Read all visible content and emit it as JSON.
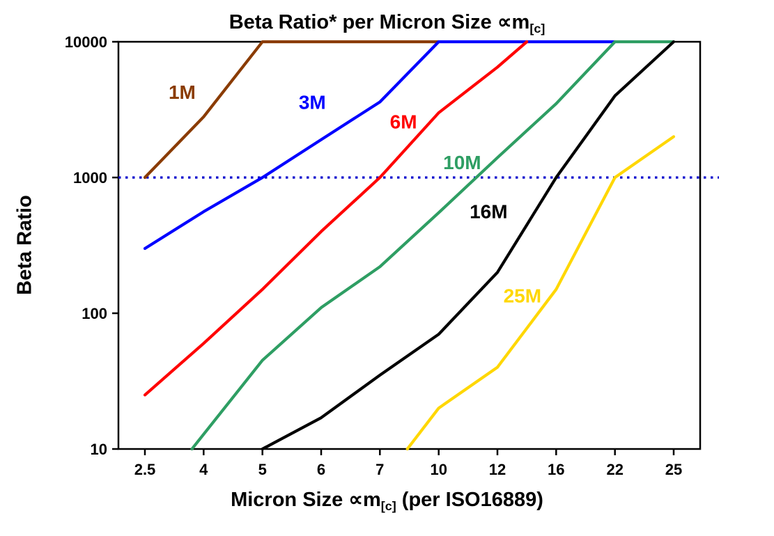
{
  "chart_title": {
    "main": "Beta Ratio* per Micron Size ∝m",
    "sub": "[c]"
  },
  "axes": {
    "y_label": "Beta Ratio",
    "x_label_pre": "Micron Size ∝m",
    "x_label_sub": "[c]",
    "x_label_post": " (per ISO16889)"
  },
  "chart_data": {
    "type": "line",
    "title": "Beta Ratio* per Micron Size ∝m[c]",
    "xlabel": "Micron Size ∝m[c] (per ISO16889)",
    "ylabel": "Beta Ratio",
    "x_scale": "categorical-spaced",
    "x_ticks": [
      2.5,
      4,
      5,
      6,
      7,
      10,
      12,
      16,
      22,
      25
    ],
    "y_scale": "log",
    "y_ticks": [
      10,
      100,
      1000,
      10000
    ],
    "ylim": [
      10,
      10000
    ],
    "grid": "off",
    "legend": "inline-labels",
    "reference_line": {
      "y": 1000,
      "color": "#0000CC",
      "style": "dotted"
    },
    "series": [
      {
        "name": "1M",
        "color": "#8A3B00",
        "label_pos": [
          3.45,
          3800
        ],
        "points": [
          [
            2.5,
            1000
          ],
          [
            4,
            2800
          ],
          [
            5,
            10000
          ],
          [
            10,
            10000
          ]
        ]
      },
      {
        "name": "3M",
        "color": "#0000FF",
        "label_pos": [
          5.85,
          3200
        ],
        "points": [
          [
            2.5,
            300
          ],
          [
            4,
            560
          ],
          [
            5,
            1000
          ],
          [
            6,
            1900
          ],
          [
            7,
            3600
          ],
          [
            10,
            10000
          ],
          [
            22,
            10000
          ]
        ]
      },
      {
        "name": "6M",
        "color": "#FF0000",
        "label_pos": [
          8.2,
          2300
        ],
        "points": [
          [
            2.5,
            25
          ],
          [
            4,
            60
          ],
          [
            5,
            150
          ],
          [
            6,
            400
          ],
          [
            7,
            1000
          ],
          [
            10,
            3000
          ],
          [
            12,
            6500
          ],
          [
            14,
            10000
          ]
        ]
      },
      {
        "name": "10M",
        "color": "#2E9E63",
        "label_pos": [
          10.8,
          1150
        ],
        "points": [
          [
            3.7,
            10
          ],
          [
            5,
            45
          ],
          [
            6,
            110
          ],
          [
            7,
            220
          ],
          [
            10,
            550
          ],
          [
            12,
            1400
          ],
          [
            16,
            3500
          ],
          [
            22,
            10000
          ],
          [
            25,
            10000
          ]
        ]
      },
      {
        "name": "16M",
        "color": "#000000",
        "label_pos": [
          11.7,
          500
        ],
        "points": [
          [
            5,
            10
          ],
          [
            6,
            17
          ],
          [
            7,
            35
          ],
          [
            10,
            70
          ],
          [
            12,
            200
          ],
          [
            16,
            1000
          ],
          [
            22,
            4000
          ],
          [
            25,
            10000
          ]
        ]
      },
      {
        "name": "25M",
        "color": "#FFD700",
        "label_pos": [
          13.7,
          120
        ],
        "points": [
          [
            8.4,
            10
          ],
          [
            10,
            20
          ],
          [
            12,
            40
          ],
          [
            16,
            150
          ],
          [
            22,
            1000
          ],
          [
            25,
            2000
          ]
        ]
      }
    ]
  }
}
